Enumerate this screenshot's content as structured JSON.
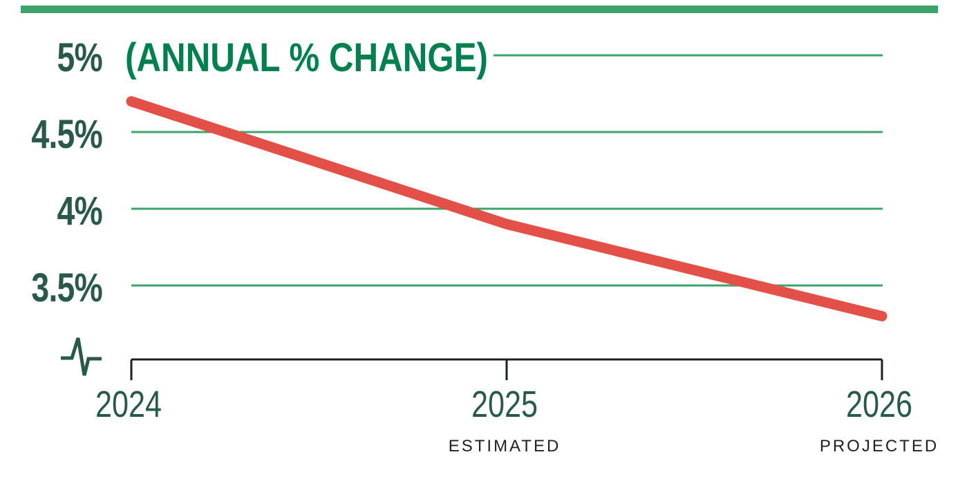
{
  "chart_data": {
    "type": "line",
    "title": "(ANNUAL % CHANGE)",
    "x": [
      "2024",
      "2025",
      "2026"
    ],
    "x_sublabels": [
      "",
      "ESTIMATED",
      "PROJECTED"
    ],
    "series": [
      {
        "name": "Annual % change",
        "values": [
          4.7,
          3.9,
          3.3
        ]
      }
    ],
    "y_ticks": [
      5,
      4.5,
      4,
      3.5
    ],
    "y_tick_labels": [
      "5%",
      "4.5%",
      "4%",
      "3.5%"
    ],
    "ylim": [
      3.2,
      5.1
    ],
    "grid": true,
    "legend": false,
    "axis_break_symbol": true,
    "colors": {
      "line": "#E25048",
      "grid": "#3EA26B",
      "accent": "#3EA26B",
      "title": "#00804E",
      "label": "#28594A",
      "axis": "#1B211E",
      "sublabel": "#21201E"
    }
  }
}
